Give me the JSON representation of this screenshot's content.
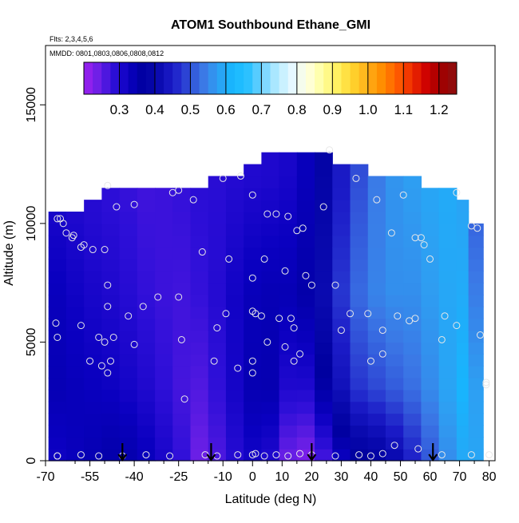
{
  "chart_data": {
    "type": "heatmap",
    "title": "ATOM1 Southbound Ethane_GMI",
    "flights_note": "Flts: 2,3,4,5,6",
    "dates_note": "MMDD: 0801,0803,0806,0808,0812",
    "xlabel": "Latitude (deg N)",
    "ylabel": "Altitude (m)",
    "xlim": [
      -70,
      82
    ],
    "ylim": [
      0,
      17500
    ],
    "x_ticks": [
      -70,
      -55,
      -40,
      -25,
      -10,
      0,
      10,
      20,
      30,
      40,
      50,
      60,
      70,
      80
    ],
    "x_tick_labels": [
      "-70",
      "-55",
      "-40",
      "-25",
      "-10",
      "0",
      "10",
      "20",
      "30",
      "40",
      "50",
      "60",
      "70",
      "80"
    ],
    "x_minor_ticks": [
      -60,
      -50,
      -45,
      -35,
      -30,
      -20,
      -15,
      -5,
      5,
      15,
      25,
      35,
      45,
      55,
      65,
      75
    ],
    "y_ticks": [
      0,
      5000,
      10000,
      15000
    ],
    "y_tick_labels": [
      "0",
      "5000",
      "10000",
      "15000"
    ],
    "grid": false,
    "colorbar": {
      "ticks": [
        0.3,
        0.4,
        0.5,
        0.6,
        0.7,
        0.8,
        0.9,
        1.0,
        1.1,
        1.2
      ],
      "tick_labels": [
        "0.3",
        "0.4",
        "0.5",
        "0.6",
        "0.7",
        "0.8",
        "0.9",
        "1.0",
        "1.1",
        "1.2"
      ],
      "min": 0.2,
      "max": 1.25,
      "colors": [
        "#a020f0",
        "#6a1fe6",
        "#2e0fd8",
        "#0a00c0",
        "#00009f",
        "#0a0ab0",
        "#1c1cc8",
        "#2f4ad6",
        "#3b78e6",
        "#2e9ff2",
        "#14b8ff",
        "#2bc1ff",
        "#72d3ff",
        "#b8ecff",
        "#e7f8ff",
        "#ffffe0",
        "#ffffa0",
        "#fff060",
        "#ffd52e",
        "#ffb018",
        "#ff8c00",
        "#ff5e00",
        "#ee2a00",
        "#cc0000",
        "#a00000",
        "#8a1010"
      ]
    },
    "heatmap": {
      "lat_edges": [
        -69,
        -63,
        -57,
        -51,
        -45,
        -39,
        -33,
        -27,
        -21,
        -15,
        -9,
        -3,
        3,
        9,
        15,
        21,
        27,
        33,
        39,
        45,
        51,
        57,
        63,
        69,
        73,
        78
      ],
      "alt_step": 500,
      "top_alt": [
        10500,
        10500,
        11000,
        11500,
        11500,
        11500,
        11500,
        11500,
        11500,
        12000,
        12000,
        12500,
        13000,
        13000,
        13000,
        13000,
        12500,
        12500,
        12000,
        12000,
        12000,
        11500,
        11500,
        11000,
        10000
      ],
      "profiles": [
        {
          "lat": -66,
          "v": [
            0.32,
            0.34,
            0.33,
            0.3
          ]
        },
        {
          "lat": -55,
          "v": [
            0.34,
            0.33,
            0.31,
            0.29
          ]
        },
        {
          "lat": -45,
          "v": [
            0.36,
            0.32,
            0.3,
            0.28
          ]
        },
        {
          "lat": -35,
          "v": [
            0.33,
            0.3,
            0.28,
            0.27
          ]
        },
        {
          "lat": -25,
          "v": [
            0.29,
            0.27,
            0.27,
            0.28
          ]
        },
        {
          "lat": -18,
          "v": [
            0.24,
            0.26,
            0.28,
            0.29
          ]
        },
        {
          "lat": -10,
          "v": [
            0.27,
            0.29,
            0.3,
            0.29
          ]
        },
        {
          "lat": -3,
          "v": [
            0.31,
            0.33,
            0.33,
            0.3
          ]
        },
        {
          "lat": 4,
          "v": [
            0.32,
            0.36,
            0.34,
            0.3
          ]
        },
        {
          "lat": 12,
          "v": [
            0.24,
            0.3,
            0.34,
            0.31
          ]
        },
        {
          "lat": 20,
          "v": [
            0.22,
            0.3,
            0.36,
            0.34
          ]
        },
        {
          "lat": 27,
          "v": [
            0.3,
            0.4,
            0.45,
            0.42
          ]
        },
        {
          "lat": 35,
          "v": [
            0.36,
            0.47,
            0.52,
            0.49
          ]
        },
        {
          "lat": 45,
          "v": [
            0.38,
            0.5,
            0.56,
            0.56
          ]
        },
        {
          "lat": 55,
          "v": [
            0.46,
            0.53,
            0.56,
            0.58
          ]
        },
        {
          "lat": 65,
          "v": [
            0.55,
            0.58,
            0.59,
            0.6
          ]
        },
        {
          "lat": 72,
          "v": [
            0.6,
            0.62,
            0.6,
            0.58
          ]
        },
        {
          "lat": 78,
          "v": [
            0.58,
            0.55,
            0.5,
            0.45
          ]
        }
      ],
      "profile_alts": [
        0,
        3000,
        7000,
        12000
      ]
    },
    "samples": [
      [
        -66,
        200
      ],
      [
        -66,
        5200
      ],
      [
        -66.5,
        5800
      ],
      [
        -66,
        10200
      ],
      [
        -65,
        10200
      ],
      [
        -64,
        10000
      ],
      [
        -63,
        9600
      ],
      [
        -61,
        9400
      ],
      [
        -60.5,
        9500
      ],
      [
        -58,
        9000
      ],
      [
        -57,
        9100
      ],
      [
        -54,
        8900
      ],
      [
        -50,
        8900
      ],
      [
        -49,
        7400
      ],
      [
        -49,
        6500
      ],
      [
        -55,
        4200
      ],
      [
        -52,
        5200
      ],
      [
        -47,
        5200
      ],
      [
        -58,
        5700
      ],
      [
        -51,
        4000
      ],
      [
        -48,
        4200
      ],
      [
        -50,
        5000
      ],
      [
        -49,
        3700
      ],
      [
        -42,
        6100
      ],
      [
        -40,
        4900
      ],
      [
        -37,
        6500
      ],
      [
        -32,
        6900
      ],
      [
        -24,
        5100
      ],
      [
        -25,
        6900
      ],
      [
        -23,
        2600
      ],
      [
        -13,
        4200
      ],
      [
        -12,
        5600
      ],
      [
        -9,
        6200
      ],
      [
        -5,
        3900
      ],
      [
        0,
        6300
      ],
      [
        1,
        6200
      ],
      [
        3,
        6100
      ],
      [
        0,
        4200
      ],
      [
        0,
        3700
      ],
      [
        0,
        7700
      ],
      [
        4,
        8500
      ],
      [
        -17,
        8800
      ],
      [
        -8,
        8500
      ],
      [
        -49,
        11600
      ],
      [
        -46,
        10700
      ],
      [
        -40,
        10800
      ],
      [
        -27,
        11300
      ],
      [
        -25,
        11400
      ],
      [
        -20,
        11000
      ],
      [
        -10,
        11900
      ],
      [
        -4,
        12000
      ],
      [
        0,
        11200
      ],
      [
        5,
        10400
      ],
      [
        12,
        10300
      ],
      [
        15,
        9700
      ],
      [
        17,
        9800
      ],
      [
        18,
        7800
      ],
      [
        20,
        7400
      ],
      [
        11,
        8000
      ],
      [
        9,
        6000
      ],
      [
        13,
        6000
      ],
      [
        11,
        4800
      ],
      [
        14,
        4200
      ],
      [
        16,
        4500
      ],
      [
        14,
        5600
      ],
      [
        5,
        5000
      ],
      [
        30,
        5500
      ],
      [
        33,
        6200
      ],
      [
        39,
        6200
      ],
      [
        40,
        4200
      ],
      [
        44,
        4500
      ],
      [
        44,
        5500
      ],
      [
        49,
        6100
      ],
      [
        53,
        5900
      ],
      [
        55,
        6000
      ],
      [
        64,
        5100
      ],
      [
        65,
        6100
      ],
      [
        69,
        5700
      ],
      [
        77,
        5300
      ],
      [
        79,
        3300
      ],
      [
        79,
        3200
      ],
      [
        24,
        10700
      ],
      [
        26,
        13100
      ],
      [
        35,
        11900
      ],
      [
        42,
        11000
      ],
      [
        47,
        9600
      ],
      [
        51,
        11200
      ],
      [
        55,
        9400
      ],
      [
        57,
        9400
      ],
      [
        58,
        9100
      ],
      [
        60,
        8500
      ],
      [
        69,
        11300
      ],
      [
        74,
        9900
      ],
      [
        76,
        9800
      ],
      [
        -66,
        200
      ],
      [
        -58,
        250
      ],
      [
        -52,
        200
      ],
      [
        -44,
        200
      ],
      [
        -36,
        250
      ],
      [
        -28,
        200
      ],
      [
        -16,
        250
      ],
      [
        -12,
        200
      ],
      [
        -5,
        250
      ],
      [
        0,
        250
      ],
      [
        1,
        300
      ],
      [
        4,
        200
      ],
      [
        8,
        250
      ],
      [
        12,
        200
      ],
      [
        16,
        300
      ],
      [
        20,
        250
      ],
      [
        28,
        200
      ],
      [
        36,
        250
      ],
      [
        40,
        200
      ],
      [
        44,
        300
      ],
      [
        48,
        650
      ],
      [
        56,
        500
      ],
      [
        64,
        250
      ],
      [
        74,
        250
      ],
      [
        80,
        250
      ],
      [
        28,
        7400
      ],
      [
        8,
        10400
      ]
    ],
    "arrows_lat": [
      -44,
      -14,
      20,
      61
    ]
  }
}
